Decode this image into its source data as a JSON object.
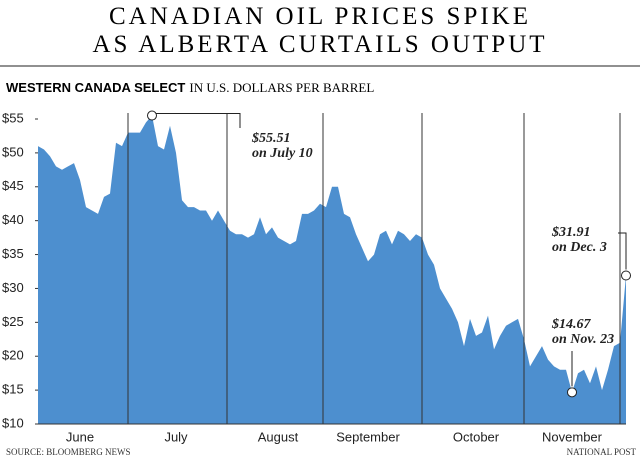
{
  "chart_data": {
    "type": "area",
    "title": [
      "CANADIAN OIL PRICES SPIKE",
      "AS ALBERTA CURTAILS OUTPUT"
    ],
    "subtitle": {
      "bold": "WESTERN CANADA SELECT",
      "rest": "IN U.S. DOLLARS PER BARREL"
    },
    "source": "SOURCE: BLOOMBERG NEWS",
    "credit": "NATIONAL POST",
    "color": "#4d8fcf",
    "ylim": [
      10,
      55
    ],
    "yticks": [
      {
        "value": 10,
        "label": "$10"
      },
      {
        "value": 15,
        "label": "$15"
      },
      {
        "value": 20,
        "label": "$20"
      },
      {
        "value": 25,
        "label": "$25"
      },
      {
        "value": 30,
        "label": "$30"
      },
      {
        "value": 35,
        "label": "$35"
      },
      {
        "value": 40,
        "label": "$40"
      },
      {
        "value": 45,
        "label": "$45"
      },
      {
        "value": 50,
        "label": "$50"
      },
      {
        "value": 55,
        "label": "$55"
      }
    ],
    "categories": [
      null,
      null,
      null,
      null,
      null,
      null,
      null,
      "June",
      null,
      null,
      null,
      null,
      null,
      null,
      null,
      null,
      null,
      null,
      null,
      null,
      null,
      null,
      null,
      "July",
      null,
      null,
      null,
      null,
      null,
      null,
      null,
      null,
      null,
      null,
      null,
      null,
      null,
      null,
      null,
      null,
      "August",
      null,
      null,
      null,
      null,
      null,
      null,
      null,
      null,
      null,
      null,
      null,
      null,
      null,
      null,
      "September",
      null,
      null,
      null,
      null,
      null,
      null,
      null,
      null,
      null,
      null,
      null,
      null,
      null,
      null,
      null,
      null,
      null,
      "October",
      null,
      null,
      null,
      null,
      null,
      null,
      null,
      null,
      null,
      null,
      null,
      null,
      null,
      null,
      null,
      "November",
      null,
      null,
      null,
      null,
      null,
      null,
      null,
      null,
      null
    ],
    "values": [
      51,
      50.5,
      49.5,
      48,
      47.5,
      48,
      48.5,
      46,
      42,
      41.5,
      41,
      43.5,
      44,
      51.5,
      51,
      53,
      53,
      53,
      54.5,
      55.51,
      51,
      50.5,
      54,
      50,
      43,
      42,
      42,
      41.5,
      41.5,
      40,
      41.5,
      40,
      38.5,
      38,
      38,
      37.5,
      38,
      40.5,
      38,
      39,
      37.5,
      37,
      36.5,
      37,
      41,
      41,
      41.5,
      42.5,
      42,
      45,
      45,
      41,
      40.5,
      38,
      36,
      34,
      35,
      38,
      38.5,
      36.5,
      38.5,
      38,
      37,
      38,
      37.5,
      35,
      33.5,
      30,
      28.5,
      27,
      25,
      21.5,
      25.5,
      23,
      23.5,
      26,
      21,
      23,
      24.5,
      25,
      25.5,
      22.5,
      18.5,
      20,
      21.5,
      19.5,
      18.5,
      18,
      18,
      14.67,
      17.5,
      18,
      16,
      18.5,
      15,
      18,
      21.5,
      22,
      31.91
    ],
    "annotations": [
      {
        "lines": [
          "$55.51",
          "on July 10"
        ]
      },
      {
        "lines": [
          "$14.67",
          "on Nov. 23"
        ]
      },
      {
        "lines": [
          "$31.91",
          "on Dec. 3"
        ]
      }
    ]
  }
}
